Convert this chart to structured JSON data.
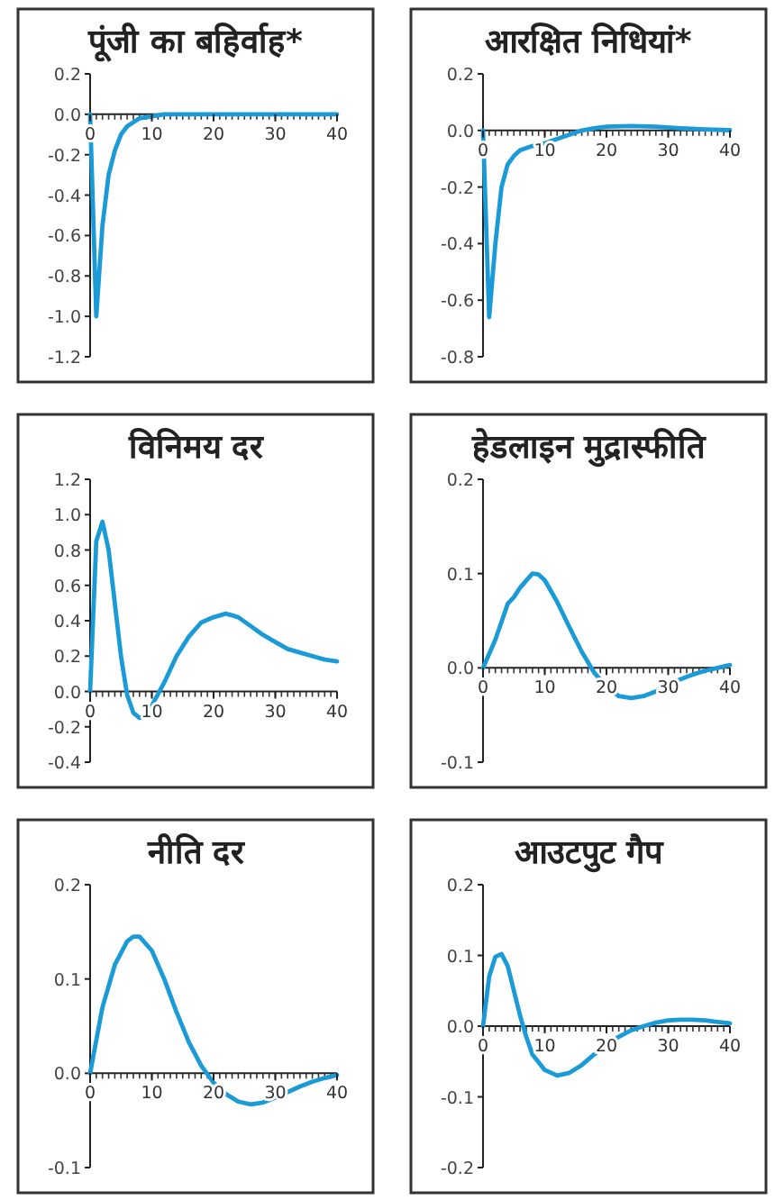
{
  "chart_data": [
    {
      "type": "line",
      "title": "पूंजी का बहिर्वाह*",
      "color": "#1a9bd7",
      "xlim": [
        0,
        40
      ],
      "ylim": [
        -1.2,
        0.2
      ],
      "xticks": [
        0,
        10,
        20,
        30,
        40
      ],
      "yticks": [
        {
          "value": -1.2,
          "label": "-1.2"
        },
        {
          "value": -1.0,
          "label": "-1.0"
        },
        {
          "value": -0.8,
          "label": "-0.8"
        },
        {
          "value": -0.6,
          "label": "-0.6"
        },
        {
          "value": -0.4,
          "label": "-0.4"
        },
        {
          "value": -0.2,
          "label": "-0.2"
        },
        {
          "value": 0,
          "label": "0.0"
        },
        {
          "value": 0.2,
          "label": "0.2"
        }
      ],
      "x": [
        0,
        1,
        2,
        3,
        4,
        5,
        6,
        7,
        8,
        10,
        12,
        15,
        20,
        25,
        30,
        35,
        40
      ],
      "values": [
        0,
        -1.0,
        -0.55,
        -0.3,
        -0.18,
        -0.1,
        -0.06,
        -0.04,
        -0.02,
        -0.01,
        0,
        0,
        0,
        0,
        0,
        0,
        0
      ]
    },
    {
      "type": "line",
      "title": "आरक्षित निधियां*",
      "color": "#1a9bd7",
      "xlim": [
        0,
        40
      ],
      "ylim": [
        -0.8,
        0.2
      ],
      "xticks": [
        0,
        10,
        20,
        30,
        40
      ],
      "yticks": [
        {
          "value": -0.8,
          "label": "-0.8"
        },
        {
          "value": -0.6,
          "label": "-0.6"
        },
        {
          "value": -0.4,
          "label": "-0.4"
        },
        {
          "value": -0.2,
          "label": "-0.2"
        },
        {
          "value": 0,
          "label": "0.0"
        },
        {
          "value": 0.2,
          "label": "0.2"
        }
      ],
      "x": [
        0,
        1,
        2,
        3,
        4,
        5,
        6,
        8,
        10,
        12,
        14,
        16,
        18,
        20,
        24,
        28,
        32,
        36,
        40
      ],
      "values": [
        0,
        -0.66,
        -0.4,
        -0.2,
        -0.12,
        -0.09,
        -0.07,
        -0.055,
        -0.045,
        -0.03,
        -0.015,
        0,
        0.008,
        0.013,
        0.016,
        0.013,
        0.008,
        0.004,
        0.001
      ]
    },
    {
      "type": "line",
      "title": "विनिमय दर",
      "color": "#1a9bd7",
      "xlim": [
        0,
        40
      ],
      "ylim": [
        -0.4,
        1.2
      ],
      "xticks": [
        0,
        10,
        20,
        30,
        40
      ],
      "yticks": [
        {
          "value": -0.4,
          "label": "-0.4"
        },
        {
          "value": -0.2,
          "label": "-0.2"
        },
        {
          "value": 0,
          "label": "0.0"
        },
        {
          "value": 0.2,
          "label": "0.2"
        },
        {
          "value": 0.4,
          "label": "0.4"
        },
        {
          "value": 0.6,
          "label": "0.6"
        },
        {
          "value": 0.8,
          "label": "0.8"
        },
        {
          "value": 1.0,
          "label": "1.0"
        },
        {
          "value": 1.2,
          "label": "1.2"
        }
      ],
      "x": [
        0,
        1,
        2,
        3,
        4,
        5,
        6,
        7,
        8,
        9,
        10,
        12,
        14,
        16,
        18,
        20,
        22,
        24,
        26,
        28,
        30,
        32,
        34,
        36,
        38,
        40
      ],
      "values": [
        0,
        0.85,
        0.96,
        0.8,
        0.5,
        0.2,
        -0.02,
        -0.12,
        -0.15,
        -0.14,
        -0.08,
        0.05,
        0.2,
        0.31,
        0.39,
        0.42,
        0.44,
        0.42,
        0.37,
        0.32,
        0.28,
        0.24,
        0.22,
        0.2,
        0.18,
        0.17
      ]
    },
    {
      "type": "line",
      "title": "हेडलाइन मुद्रास्फीति",
      "color": "#1a9bd7",
      "xlim": [
        0,
        40
      ],
      "ylim": [
        -0.1,
        0.2
      ],
      "xticks": [
        0,
        10,
        20,
        30,
        40
      ],
      "yticks": [
        {
          "value": -0.1,
          "label": "-0.1"
        },
        {
          "value": 0,
          "label": "0.0"
        },
        {
          "value": 0.1,
          "label": "0.1"
        },
        {
          "value": 0.2,
          "label": "0.2"
        }
      ],
      "x": [
        0,
        2,
        4,
        5,
        6,
        8,
        9,
        10,
        12,
        14,
        16,
        18,
        20,
        22,
        24,
        26,
        28,
        30,
        32,
        34,
        36,
        38,
        40
      ],
      "values": [
        0,
        0.03,
        0.068,
        0.075,
        0.085,
        0.1,
        0.099,
        0.093,
        0.07,
        0.043,
        0.017,
        -0.005,
        -0.02,
        -0.03,
        -0.032,
        -0.03,
        -0.025,
        -0.018,
        -0.012,
        -0.007,
        -0.003,
        0,
        0.003
      ]
    },
    {
      "type": "line",
      "title": "नीति दर",
      "color": "#1a9bd7",
      "xlim": [
        0,
        40
      ],
      "ylim": [
        -0.1,
        0.2
      ],
      "xticks": [
        0,
        10,
        20,
        30,
        40
      ],
      "yticks": [
        {
          "value": -0.1,
          "label": "-0.1"
        },
        {
          "value": 0,
          "label": "0.0"
        },
        {
          "value": 0.1,
          "label": "0.1"
        },
        {
          "value": 0.2,
          "label": "0.2"
        }
      ],
      "x": [
        0,
        2,
        4,
        6,
        7,
        8,
        10,
        12,
        14,
        16,
        18,
        20,
        22,
        24,
        26,
        28,
        30,
        32,
        34,
        36,
        38,
        40
      ],
      "values": [
        0,
        0.07,
        0.115,
        0.14,
        0.145,
        0.145,
        0.13,
        0.1,
        0.065,
        0.033,
        0.008,
        -0.01,
        -0.022,
        -0.03,
        -0.033,
        -0.031,
        -0.026,
        -0.02,
        -0.014,
        -0.009,
        -0.005,
        -0.002
      ]
    },
    {
      "type": "line",
      "title": "आउटपुट गैप",
      "color": "#1a9bd7",
      "xlim": [
        0,
        40
      ],
      "ylim": [
        -0.2,
        0.2
      ],
      "xticks": [
        0,
        10,
        20,
        30,
        40
      ],
      "yticks": [
        {
          "value": -0.2,
          "label": "-0.2"
        },
        {
          "value": -0.1,
          "label": "-0.1"
        },
        {
          "value": 0,
          "label": "0.0"
        },
        {
          "value": 0.1,
          "label": "0.1"
        },
        {
          "value": 0.2,
          "label": "0.2"
        }
      ],
      "x": [
        0,
        1,
        2,
        3,
        4,
        5,
        6,
        7,
        8,
        10,
        12,
        14,
        16,
        18,
        20,
        22,
        24,
        26,
        28,
        30,
        32,
        34,
        36,
        38,
        40
      ],
      "values": [
        0,
        0.07,
        0.098,
        0.102,
        0.085,
        0.05,
        0.015,
        -0.015,
        -0.04,
        -0.062,
        -0.07,
        -0.066,
        -0.055,
        -0.04,
        -0.027,
        -0.015,
        -0.006,
        0,
        0.005,
        0.008,
        0.009,
        0.009,
        0.008,
        0.006,
        0.004
      ]
    }
  ]
}
